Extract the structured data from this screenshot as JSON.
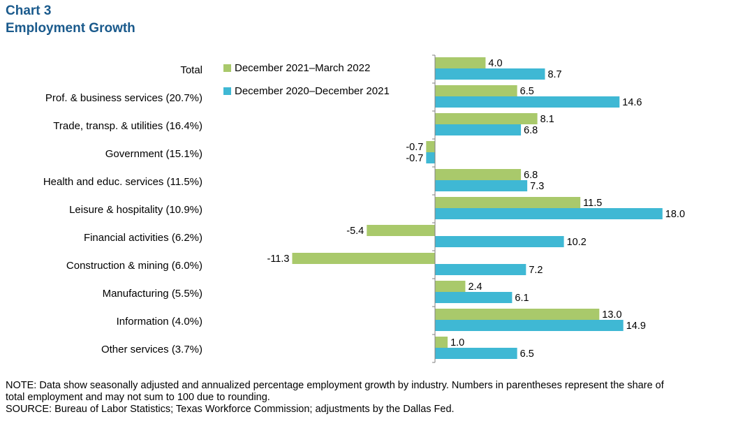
{
  "title": "Chart 3",
  "subtitle": "Employment  Growth",
  "colors": {
    "series1": "#a9c96b",
    "series2": "#3fb8d4",
    "axis": "#7f7f7f"
  },
  "chart_data": {
    "type": "bar",
    "orientation": "horizontal",
    "categories": [
      "Total",
      "Prof. & business services (20.7%)",
      "Trade, transp. & utilities (16.4%)",
      "Government (15.1%)",
      "Health and educ. services (11.5%)",
      "Leisure & hospitality (10.9%)",
      "Financial activities (6.2%)",
      "Construction & mining (6.0%)",
      "Manufacturing (5.5%)",
      "Information (4.0%)",
      "Other services (3.7%)"
    ],
    "series": [
      {
        "name": "December  2021–March  2022",
        "values": [
          4.0,
          6.5,
          8.1,
          -0.7,
          6.8,
          11.5,
          -5.4,
          -11.3,
          2.4,
          13.0,
          1.0
        ]
      },
      {
        "name": "December  2020–December  2021",
        "values": [
          8.7,
          14.6,
          6.8,
          -0.7,
          7.3,
          18.0,
          10.2,
          7.2,
          6.1,
          14.9,
          6.5
        ]
      }
    ],
    "legend_position": "top-left",
    "grid": false
  },
  "note": {
    "line1": "NOTE: Data show seasonally adjusted and annualized  percentage  employment  growth  by industry.  Numbers in parentheses  represent  the share of",
    "line2": "total employment and may not sum to 100 due to rounding.",
    "line3": "SOURCE: Bureau of Labor Statistics; Texas Workforce Commission; adjustments  by the Dallas Fed."
  }
}
